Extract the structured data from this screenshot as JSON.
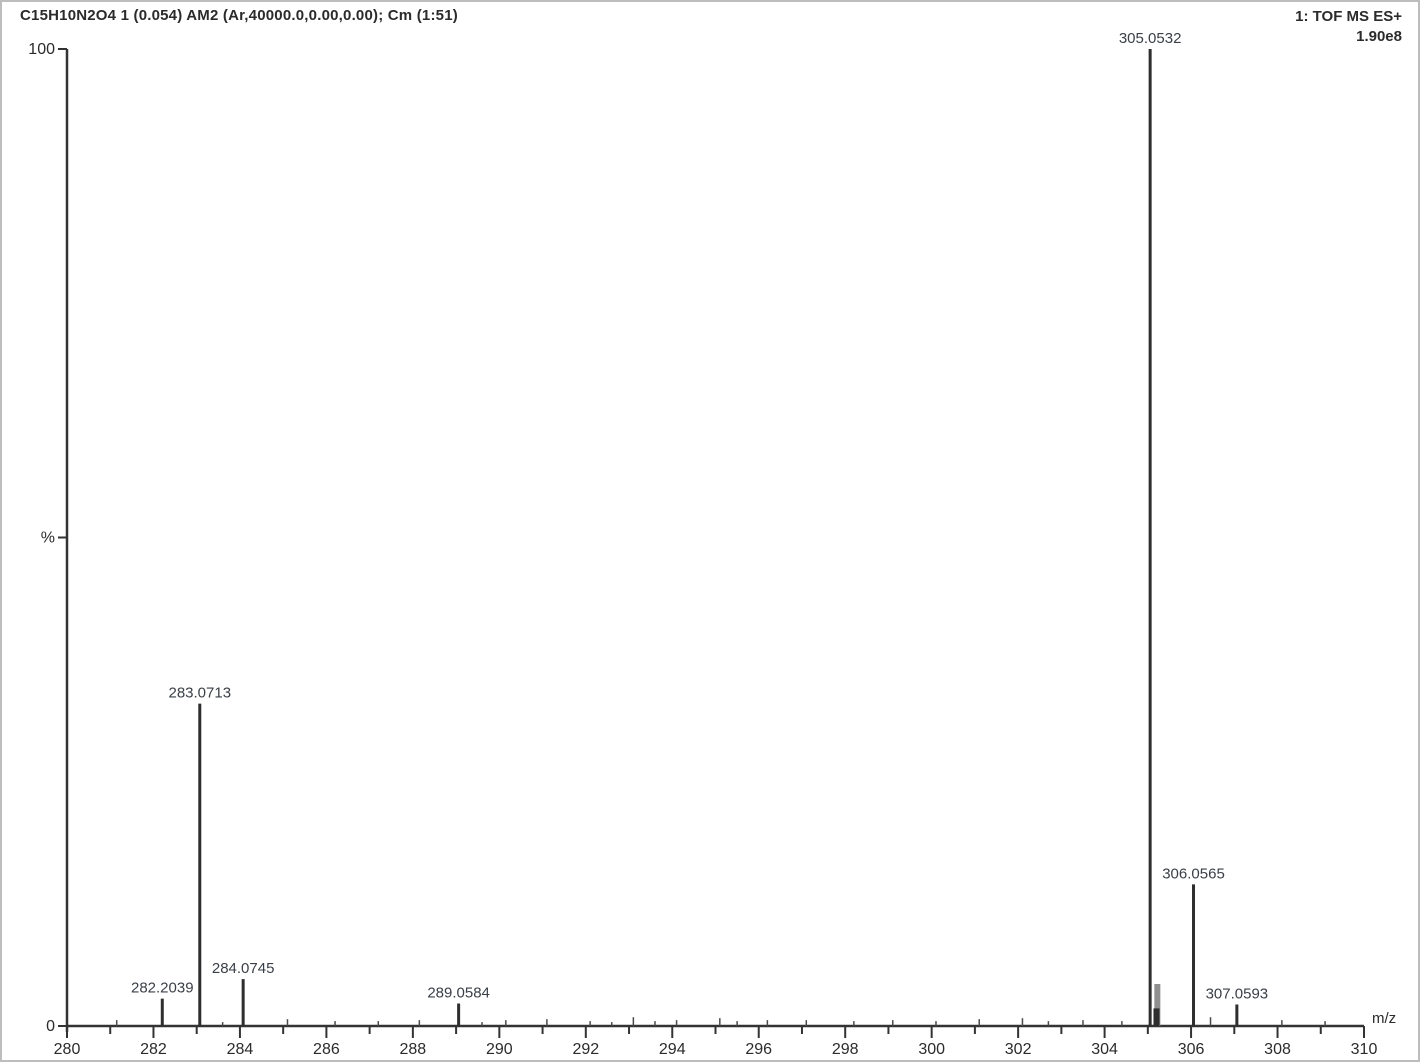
{
  "header": {
    "sample_line": "C15H10N2O4 1 (0.054) AM2 (Ar,40000.0,0.00,0.00); Cm (1:51)",
    "acquisition_mode": "1: TOF MS ES+",
    "base_peak_intensity": "1.90e8"
  },
  "axes": {
    "y_top_label": "100",
    "y_mid_label": "%",
    "y_bottom_label": "0",
    "x_axis_label": "m/z",
    "x_tick_labels": [
      280,
      282,
      284,
      286,
      288,
      290,
      292,
      294,
      296,
      298,
      300,
      302,
      304,
      306,
      308,
      310
    ]
  },
  "chart_data": {
    "type": "bar",
    "title": "C15H10N2O4 1 (0.054) AM2 (Ar,40000.0,0.00,0.00); Cm (1:51)",
    "subtitle": "1: TOF MS ES+  1.90e8",
    "xlabel": "m/z",
    "ylabel": "%",
    "xlim": [
      280,
      310
    ],
    "ylim": [
      0,
      100
    ],
    "grid": false,
    "legend": "none",
    "labeled_peaks": [
      {
        "mz": 282.2039,
        "intensity_pct": 2.8,
        "label": "282.2039"
      },
      {
        "mz": 283.0713,
        "intensity_pct": 33.0,
        "label": "283.0713"
      },
      {
        "mz": 284.0745,
        "intensity_pct": 4.8,
        "label": "284.0745"
      },
      {
        "mz": 289.0584,
        "intensity_pct": 2.3,
        "label": "289.0584"
      },
      {
        "mz": 305.0532,
        "intensity_pct": 100.0,
        "label": "305.0532"
      },
      {
        "mz": 306.0565,
        "intensity_pct": 14.5,
        "label": "306.0565"
      },
      {
        "mz": 307.0593,
        "intensity_pct": 2.2,
        "label": "307.0593"
      }
    ],
    "satellite_peaks": [
      {
        "mz": 305.22,
        "intensity_pct": 4.3,
        "width": 6,
        "color": "#8f8f8f"
      },
      {
        "mz": 305.2,
        "intensity_pct": 1.8,
        "width": 6,
        "color": "#2e2e2e"
      }
    ],
    "noise_peaks": [
      {
        "mz": 281.15,
        "intensity_pct": 0.6
      },
      {
        "mz": 283.6,
        "intensity_pct": 0.4
      },
      {
        "mz": 285.1,
        "intensity_pct": 0.7
      },
      {
        "mz": 286.2,
        "intensity_pct": 0.5
      },
      {
        "mz": 287.2,
        "intensity_pct": 0.5
      },
      {
        "mz": 288.15,
        "intensity_pct": 0.6
      },
      {
        "mz": 289.6,
        "intensity_pct": 0.4
      },
      {
        "mz": 290.15,
        "intensity_pct": 0.6
      },
      {
        "mz": 291.1,
        "intensity_pct": 0.7
      },
      {
        "mz": 292.1,
        "intensity_pct": 0.5
      },
      {
        "mz": 292.6,
        "intensity_pct": 0.4
      },
      {
        "mz": 293.1,
        "intensity_pct": 0.9
      },
      {
        "mz": 293.6,
        "intensity_pct": 0.5
      },
      {
        "mz": 294.1,
        "intensity_pct": 0.6
      },
      {
        "mz": 295.1,
        "intensity_pct": 0.8
      },
      {
        "mz": 295.5,
        "intensity_pct": 0.5
      },
      {
        "mz": 296.2,
        "intensity_pct": 0.6
      },
      {
        "mz": 297.1,
        "intensity_pct": 0.6
      },
      {
        "mz": 298.2,
        "intensity_pct": 0.5
      },
      {
        "mz": 299.1,
        "intensity_pct": 0.6
      },
      {
        "mz": 300.1,
        "intensity_pct": 0.5
      },
      {
        "mz": 301.1,
        "intensity_pct": 0.7
      },
      {
        "mz": 302.1,
        "intensity_pct": 0.8
      },
      {
        "mz": 302.7,
        "intensity_pct": 0.5
      },
      {
        "mz": 303.5,
        "intensity_pct": 0.6
      },
      {
        "mz": 304.4,
        "intensity_pct": 0.5
      },
      {
        "mz": 306.45,
        "intensity_pct": 0.9
      },
      {
        "mz": 308.1,
        "intensity_pct": 0.6
      },
      {
        "mz": 309.1,
        "intensity_pct": 0.5
      }
    ]
  },
  "colors": {
    "peak_line": "#2e2e2e",
    "axis_line": "#333333",
    "label_text": "#3a3f47",
    "axis_text": "#2b2b2b",
    "background": "#ffffff"
  }
}
